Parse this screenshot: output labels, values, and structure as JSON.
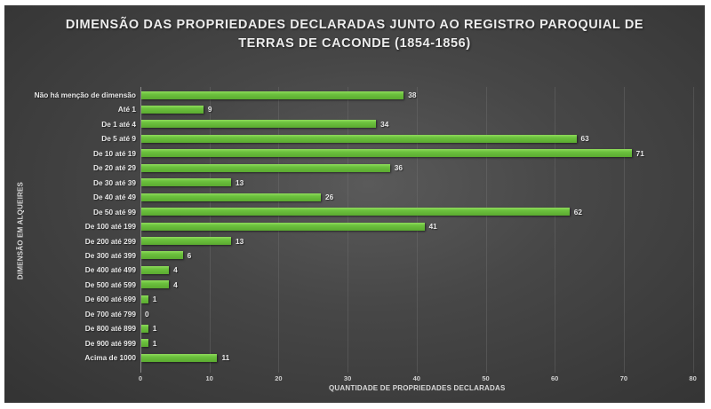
{
  "chart_data": {
    "type": "bar",
    "orientation": "horizontal",
    "title": "DIMENSÃO DAS PROPRIEDADES DECLARADAS JUNTO AO REGISTRO PAROQUIAL DE TERRAS DE CACONDE (1854-1856)",
    "title_lines": [
      "DIMENSÃO DAS PROPRIEDADES DECLARADAS JUNTO AO REGISTRO PAROQUIAL DE",
      "TERRAS DE CACONDE (1854-1856)"
    ],
    "xlabel": "QUANTIDADE DE PROPRIEDADES DECLARADAS",
    "ylabel": "DIMENSÃO EM ALQUEIRES",
    "categories": [
      "Não há menção de dimensão",
      "Até 1",
      "De 1 até 4",
      "De 5 até 9",
      "De 10 até 19",
      "De 20 até 29",
      "De 30 até 39",
      "De 40 até 49",
      "De 50 até 99",
      "De 100 até 199",
      "De 200 até 299",
      "De 300 até 399",
      "De 400 até 499",
      "De 500 até 599",
      "De 600 até 699",
      "De 700 até 799",
      "De 800 até 899",
      "De 900 até 999",
      "Acima de 1000"
    ],
    "values": [
      38,
      9,
      34,
      63,
      71,
      36,
      13,
      26,
      62,
      41,
      13,
      6,
      4,
      4,
      1,
      0,
      1,
      1,
      11
    ],
    "xlim": [
      0,
      80
    ],
    "xticks": [
      "0",
      "10",
      "20",
      "30",
      "40",
      "50",
      "60",
      "70",
      "80"
    ],
    "grid": true,
    "data_labels": true,
    "legend": null,
    "bar_color": "#6cc23e",
    "background_color": "#404040"
  }
}
